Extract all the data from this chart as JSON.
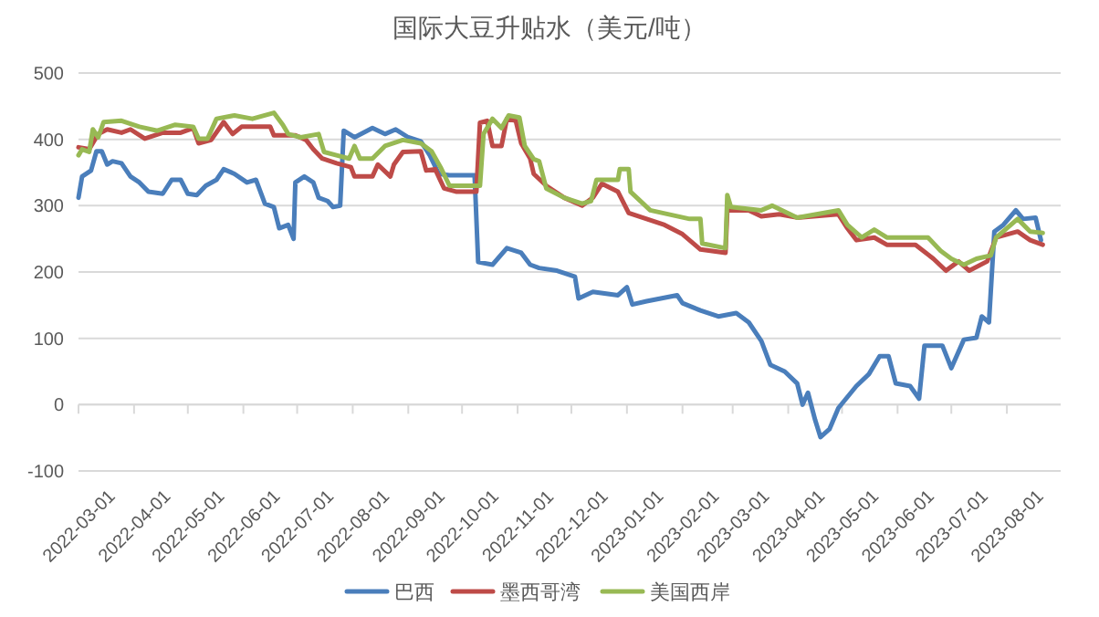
{
  "chart_data": {
    "type": "line",
    "title": "国际大豆升贴水（美元/吨）",
    "xlim": [
      "2022-03-01",
      "2023-08-31"
    ],
    "xticks": [
      "2022-03-01",
      "2022-04-01",
      "2022-05-01",
      "2022-06-01",
      "2022-07-01",
      "2022-08-01",
      "2022-09-01",
      "2022-10-01",
      "2022-11-01",
      "2022-12-01",
      "2023-01-01",
      "2023-02-01",
      "2023-03-01",
      "2023-04-01",
      "2023-05-01",
      "2023-06-01",
      "2023-07-01",
      "2023-08-01"
    ],
    "ylim": [
      -100,
      500
    ],
    "yticks": [
      -100,
      0,
      100,
      200,
      300,
      400,
      500
    ],
    "grid": "y",
    "legend": "bottom",
    "marker": "none",
    "line_style": "solid",
    "series": [
      {
        "name": "巴西",
        "color": "#4a7ebb",
        "x": [
          "2022-03-01",
          "2022-03-03",
          "2022-03-08",
          "2022-03-11",
          "2022-03-14",
          "2022-03-17",
          "2022-03-20",
          "2022-03-25",
          "2022-03-30",
          "2022-04-04",
          "2022-04-09",
          "2022-04-17",
          "2022-04-22",
          "2022-04-27",
          "2022-05-01",
          "2022-05-06",
          "2022-05-11",
          "2022-05-17",
          "2022-05-21",
          "2022-05-27",
          "2022-06-03",
          "2022-06-08",
          "2022-06-13",
          "2022-06-18",
          "2022-06-21",
          "2022-06-26",
          "2022-06-29",
          "2022-06-30",
          "2022-07-05",
          "2022-07-10",
          "2022-07-13",
          "2022-07-18",
          "2022-07-21",
          "2022-07-25",
          "2022-07-27",
          "2022-08-02",
          "2022-08-12",
          "2022-08-19",
          "2022-08-25",
          "2022-09-01",
          "2022-09-08",
          "2022-09-13",
          "2022-09-18",
          "2022-09-24",
          "2022-10-08",
          "2022-10-10",
          "2022-10-18",
          "2022-10-26",
          "2022-11-03",
          "2022-11-08",
          "2022-11-13",
          "2022-11-23",
          "2022-12-03",
          "2022-12-05",
          "2022-12-13",
          "2022-12-27",
          "2023-01-01",
          "2023-01-04",
          "2023-01-12",
          "2023-01-29",
          "2023-02-01",
          "2023-02-11",
          "2023-02-21",
          "2023-03-03",
          "2023-03-10",
          "2023-03-17",
          "2023-03-22",
          "2023-03-30",
          "2023-04-06",
          "2023-04-09",
          "2023-04-12",
          "2023-04-16",
          "2023-04-19",
          "2023-04-24",
          "2023-04-29",
          "2023-05-09",
          "2023-05-16",
          "2023-05-22",
          "2023-05-27",
          "2023-05-31",
          "2023-06-08",
          "2023-06-13",
          "2023-06-16",
          "2023-06-26",
          "2023-07-01",
          "2023-07-08",
          "2023-07-15",
          "2023-07-18",
          "2023-07-22",
          "2023-07-25",
          "2023-07-30",
          "2023-08-06",
          "2023-08-10",
          "2023-08-17",
          "2023-08-20"
        ],
        "values": [
          312,
          344,
          353,
          382,
          382,
          362,
          367,
          364,
          344,
          335,
          321,
          318,
          339,
          339,
          318,
          316,
          330,
          339,
          355,
          348,
          335,
          339,
          303,
          298,
          266,
          271,
          250,
          335,
          344,
          335,
          312,
          307,
          298,
          300,
          413,
          403,
          417,
          408,
          415,
          403,
          397,
          376,
          348,
          346,
          346,
          215,
          211,
          236,
          229,
          211,
          206,
          202,
          193,
          160,
          170,
          165,
          177,
          151,
          156,
          165,
          153,
          142,
          133,
          138,
          124,
          96,
          60,
          50,
          32,
          0,
          18,
          -23,
          -49,
          -37,
          -5,
          28,
          46,
          73,
          73,
          32,
          28,
          9,
          89,
          89,
          55,
          98,
          101,
          133,
          124,
          261,
          271,
          293,
          280,
          282,
          248
        ]
      },
      {
        "name": "墨西哥湾",
        "color": "#be4b48",
        "x": [
          "2022-03-01",
          "2022-03-07",
          "2022-03-12",
          "2022-03-17",
          "2022-03-25",
          "2022-03-30",
          "2022-04-07",
          "2022-04-17",
          "2022-04-27",
          "2022-05-04",
          "2022-05-07",
          "2022-05-14",
          "2022-05-21",
          "2022-05-26",
          "2022-05-31",
          "2022-06-16",
          "2022-06-18",
          "2022-06-30",
          "2022-07-06",
          "2022-07-10",
          "2022-07-15",
          "2022-07-23",
          "2022-07-31",
          "2022-08-02",
          "2022-08-12",
          "2022-08-15",
          "2022-08-22",
          "2022-08-24",
          "2022-08-29",
          "2022-09-08",
          "2022-09-11",
          "2022-09-16",
          "2022-09-21",
          "2022-09-28",
          "2022-10-09",
          "2022-10-11",
          "2022-10-15",
          "2022-10-18",
          "2022-10-23",
          "2022-10-26",
          "2022-10-31",
          "2022-11-03",
          "2022-11-08",
          "2022-11-10",
          "2022-11-17",
          "2022-11-27",
          "2022-12-07",
          "2022-12-13",
          "2022-12-18",
          "2022-12-27",
          "2023-01-02",
          "2023-01-12",
          "2023-01-22",
          "2023-02-01",
          "2023-02-11",
          "2023-02-25",
          "2023-02-26",
          "2023-03-10",
          "2023-03-17",
          "2023-03-27",
          "2023-04-06",
          "2023-04-29",
          "2023-05-04",
          "2023-05-09",
          "2023-05-19",
          "2023-05-26",
          "2023-06-11",
          "2023-06-21",
          "2023-06-28",
          "2023-07-05",
          "2023-07-11",
          "2023-07-21",
          "2023-07-26",
          "2023-08-07",
          "2023-08-14",
          "2023-08-21"
        ],
        "values": [
          388,
          385,
          408,
          415,
          410,
          415,
          401,
          410,
          410,
          417,
          394,
          399,
          426,
          408,
          419,
          419,
          406,
          406,
          399,
          385,
          371,
          364,
          358,
          344,
          344,
          362,
          344,
          362,
          381,
          382,
          353,
          355,
          326,
          321,
          321,
          425,
          428,
          390,
          390,
          431,
          428,
          394,
          371,
          348,
          330,
          312,
          300,
          312,
          333,
          321,
          289,
          280,
          271,
          257,
          234,
          229,
          293,
          293,
          284,
          287,
          282,
          287,
          266,
          248,
          252,
          241,
          241,
          220,
          202,
          216,
          202,
          216,
          252,
          261,
          248,
          241
        ]
      },
      {
        "name": "美国西岸",
        "color": "#98b954",
        "x": [
          "2022-03-01",
          "2022-03-03",
          "2022-03-07",
          "2022-03-09",
          "2022-03-12",
          "2022-03-15",
          "2022-03-25",
          "2022-04-04",
          "2022-04-14",
          "2022-04-24",
          "2022-05-04",
          "2022-05-07",
          "2022-05-12",
          "2022-05-17",
          "2022-05-27",
          "2022-06-06",
          "2022-06-18",
          "2022-06-23",
          "2022-06-26",
          "2022-07-03",
          "2022-07-13",
          "2022-07-16",
          "2022-07-23",
          "2022-07-30",
          "2022-08-02",
          "2022-08-05",
          "2022-08-12",
          "2022-08-19",
          "2022-08-29",
          "2022-09-08",
          "2022-09-14",
          "2022-09-19",
          "2022-09-24",
          "2022-10-11",
          "2022-10-13",
          "2022-10-18",
          "2022-10-23",
          "2022-10-27",
          "2022-11-02",
          "2022-11-05",
          "2022-11-10",
          "2022-11-13",
          "2022-11-17",
          "2022-11-27",
          "2022-12-07",
          "2022-12-12",
          "2022-12-15",
          "2022-12-27",
          "2022-12-28",
          "2023-01-02",
          "2023-01-03",
          "2023-01-14",
          "2023-02-05",
          "2023-02-11",
          "2023-02-12",
          "2023-02-25",
          "2023-02-26",
          "2023-02-28",
          "2023-03-17",
          "2023-03-23",
          "2023-04-06",
          "2023-04-29",
          "2023-05-04",
          "2023-05-12",
          "2023-05-19",
          "2023-05-26",
          "2023-06-18",
          "2023-06-25",
          "2023-07-01",
          "2023-07-08",
          "2023-07-15",
          "2023-07-23",
          "2023-07-26",
          "2023-08-07",
          "2023-08-14",
          "2023-08-21"
        ],
        "values": [
          376,
          385,
          381,
          415,
          403,
          426,
          428,
          419,
          413,
          422,
          419,
          401,
          401,
          431,
          436,
          431,
          440,
          422,
          408,
          403,
          408,
          381,
          376,
          371,
          390,
          371,
          371,
          390,
          399,
          394,
          382,
          358,
          330,
          330,
          408,
          431,
          417,
          436,
          433,
          390,
          370,
          367,
          326,
          312,
          303,
          307,
          339,
          339,
          355,
          355,
          321,
          293,
          280,
          280,
          243,
          236,
          316,
          298,
          293,
          300,
          282,
          293,
          271,
          252,
          264,
          252,
          252,
          232,
          220,
          211,
          220,
          225,
          252,
          280,
          261,
          259
        ]
      }
    ]
  }
}
